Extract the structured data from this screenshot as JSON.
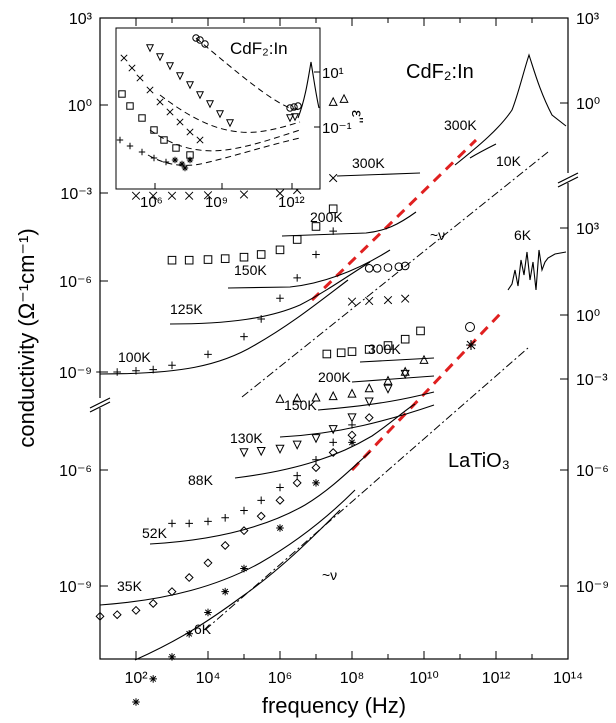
{
  "chart_data": {
    "type": "scatter",
    "xlabel": "frequency (Hz)",
    "ylabel": "conductivity (Ω⁻¹cm⁻¹)",
    "x_scale": "log",
    "xlim": [
      10,
      100000000000000.0
    ],
    "x_ticks": [
      "10²",
      "10⁴",
      "10⁶",
      "10⁸",
      "10¹⁰",
      "10¹²",
      "10¹⁴"
    ],
    "left_upper_ticks": [
      "10³",
      "10⁰",
      "10⁻³",
      "10⁻⁶",
      "10⁻⁹"
    ],
    "left_lower_ticks": [
      "10⁻⁶",
      "10⁻⁹"
    ],
    "right_ticks": [
      "10³",
      "10⁰",
      "10³",
      "10⁰",
      "10⁻³",
      "10⁻⁶",
      "10⁻⁹"
    ],
    "right_epsilon_label": "ε''",
    "labels": {
      "cdf2_main": "CdF₂:In",
      "latio3": "LaTiO₃",
      "nu_upper": "~ν",
      "nu_lower": "~ν",
      "cdf2_300k_eps": "300K",
      "cdf2_10k_eps": "10K",
      "cdf2_6k_eps": "6K"
    },
    "upper_series": [
      {
        "name": "300K",
        "marker": "circle",
        "x": [
          200000.0,
          300000.0,
          500000.0,
          700000.0,
          1000000.0,
          2000000.0,
          3000000.0
        ],
        "y": [
          0.0055,
          0.0055,
          0.0055,
          0.0055,
          0.0056,
          0.0058,
          0.006
        ]
      },
      {
        "name": "200K",
        "marker": "triangle",
        "x": [
          100000.0,
          300000.0,
          1000000.0,
          3000000.0,
          10000000.0,
          30000000.0,
          60000000.0
        ],
        "y": [
          3e-05,
          3.1e-05,
          3.2e-05,
          3.4e-05,
          3.6e-05,
          4e-05,
          4.5e-05
        ]
      },
      {
        "name": "150K",
        "marker": "x",
        "x": [
          100,
          300,
          1000.0,
          3000.0,
          10000.0,
          100000.0,
          1000000.0,
          3000000.0,
          10000000.0,
          30000000.0
        ],
        "y": [
          1e-06,
          1e-06,
          1e-06,
          1e-06,
          1.02e-06,
          1.05e-06,
          1.1e-06,
          1.25e-06,
          1.5e-06,
          2e-06
        ]
      },
      {
        "name": "125K",
        "marker": "square",
        "x": [
          1000.0,
          3000.0,
          10000.0,
          30000.0,
          100000.0,
          300000.0,
          1000000.0,
          3000000.0,
          10000000.0,
          30000000.0
        ],
        "y": [
          8e-08,
          8e-08,
          8.2e-08,
          8.5e-08,
          9e-08,
          1e-07,
          1.2e-07,
          1.8e-07,
          3e-07,
          6e-07
        ]
      },
      {
        "name": "100K",
        "marker": "plus",
        "x": [
          10,
          30,
          100,
          300,
          1000.0,
          10000.0,
          100000.0,
          300000.0,
          1000000.0,
          3000000.0,
          10000000.0,
          30000000.0
        ],
        "y": [
          1e-09,
          1e-09,
          1.05e-09,
          1.1e-09,
          1.3e-09,
          2e-09,
          4e-09,
          8e-09,
          1.8e-08,
          4e-08,
          1e-07,
          2.5e-07
        ]
      }
    ],
    "lower_series": [
      {
        "name": "300K",
        "marker": "circle",
        "x": [
          300000000.0,
          500000000.0,
          1000000000.0,
          2000000000.0,
          3000000000.0
        ],
        "y": [
          0.0003,
          0.0003,
          0.00031,
          0.00032,
          0.00033
        ]
      },
      {
        "name": "200K",
        "marker": "x",
        "x": [
          100000000.0,
          300000000.0,
          1000000000.0,
          3000000000.0
        ],
        "y": [
          8e-05,
          8.2e-05,
          8.5e-05,
          9e-05
        ]
      },
      {
        "name": "150K",
        "marker": "square",
        "x": [
          20000000.0,
          50000000.0,
          100000000.0,
          300000000.0,
          1000000000.0,
          3000000000.0,
          8000000000.0
        ],
        "y": [
          1e-05,
          1.05e-05,
          1.1e-05,
          1.2e-05,
          1.4e-05,
          1.8e-05,
          2.5e-05
        ]
      },
      {
        "name": "130K",
        "marker": "triangle",
        "x": [
          1000000.0,
          3000000.0,
          10000000.0,
          30000000.0,
          100000000.0,
          300000000.0,
          1000000000.0,
          3000000000.0,
          10000000000.0
        ],
        "y": [
          1.7e-06,
          1.75e-06,
          1.8e-06,
          1.9e-06,
          2.1e-06,
          2.6e-06,
          3.5e-06,
          5e-06,
          8e-06
        ]
      },
      {
        "name": "88K",
        "marker": "triangle-down",
        "x": [
          100000.0,
          300000.0,
          1000000.0,
          3000000.0,
          10000000.0,
          30000000.0,
          100000000.0,
          300000000.0,
          1000000000.0,
          3000000000.0
        ],
        "y": [
          2e-07,
          2.1e-07,
          2.3e-07,
          2.7e-07,
          3.5e-07,
          5e-07,
          8e-07,
          1.5e-06,
          2.5e-06,
          4.5e-06
        ]
      },
      {
        "name": "52K",
        "marker": "plus",
        "x": [
          1000.0,
          3000.0,
          10000.0,
          30000.0,
          100000.0,
          300000.0,
          1000000.0,
          3000000.0,
          10000000.0,
          30000000.0,
          100000000.0
        ],
        "y": [
          1.2e-08,
          1.2e-08,
          1.3e-08,
          1.5e-08,
          2e-08,
          3e-08,
          5e-08,
          8e-08,
          1.5e-07,
          3e-07,
          6e-07
        ]
      },
      {
        "name": "35K",
        "marker": "diamond",
        "x": [
          10,
          30,
          100,
          300,
          1000.0,
          3000.0,
          10000.0,
          30000.0,
          100000.0,
          300000.0,
          1000000.0,
          3000000.0,
          10000000.0,
          30000000.0,
          100000000.0,
          300000000.0
        ],
        "y": [
          3e-10,
          3.2e-10,
          3.8e-10,
          5e-10,
          8e-10,
          1.4e-09,
          2.5e-09,
          5e-09,
          9e-09,
          1.6e-08,
          3e-08,
          6e-08,
          1.1e-07,
          2e-07,
          4e-07,
          8e-07
        ]
      },
      {
        "name": "6K",
        "marker": "asterisk",
        "x": [
          100,
          300,
          1000.0,
          3000.0,
          10000.0,
          30000.0,
          100000.0,
          1000000.0,
          10000000.0,
          100000000.0
        ],
        "y": [
          1e-11,
          2.5e-11,
          6e-11,
          1.5e-10,
          3.5e-10,
          8e-10,
          2e-09,
          1e-08,
          6e-08,
          3e-07
        ]
      }
    ],
    "inset": {
      "title": "CdF₂:In",
      "x_ticks": [
        "10⁶",
        "10⁹",
        "10¹²"
      ],
      "y_ticks": [
        "10¹",
        "10⁻¹"
      ]
    }
  }
}
